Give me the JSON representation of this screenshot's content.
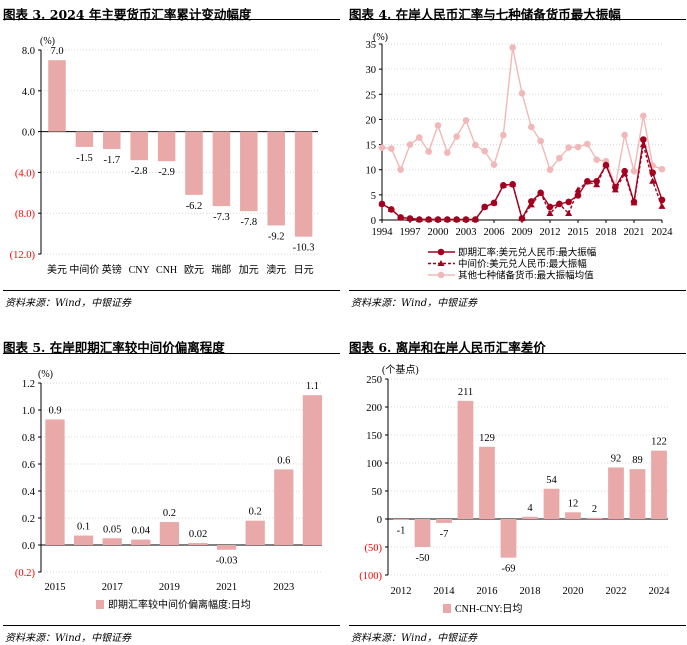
{
  "colors": {
    "bar": "#e8a9a8",
    "spot": "#a3001f",
    "central": "#a3001f",
    "others": "#f2b8b8",
    "negative_tick": "#ff0000",
    "grid": "#d9d9d9"
  },
  "source_text": "资料来源：Wind，中银证券",
  "chart_data": [
    {
      "type": "bar",
      "title": "图表 3. 2024 年主要货币汇率累计变动幅度",
      "unit": "(%)",
      "categories": [
        "美元",
        "中间价",
        "英镑",
        "CNY",
        "CNH",
        "欧元",
        "瑞郎",
        "加元",
        "澳元",
        "日元"
      ],
      "values": [
        7.0,
        -1.5,
        -1.7,
        -2.8,
        -2.9,
        -6.2,
        -7.3,
        -7.8,
        -9.2,
        -10.3
      ],
      "labels": [
        "7.0",
        "-1.5",
        "-1.7",
        "-2.8",
        "-2.9",
        "-6.2",
        "-7.3",
        "-7.8",
        "-9.2",
        "-10.3"
      ],
      "yticks": [
        8,
        4,
        0,
        -4,
        -8,
        -12
      ],
      "ytick_labels": [
        "8.0",
        "4.0",
        "0.0",
        "(4.0)",
        "(8.0)",
        "(12.0)"
      ],
      "ylim": [
        -12,
        8
      ]
    },
    {
      "type": "line",
      "title": "图表 4. 在岸人民币汇率与七种储备货币最大振幅",
      "unit": "(%)",
      "x": [
        1994,
        1995,
        1996,
        1997,
        1998,
        1999,
        2000,
        2001,
        2002,
        2003,
        2004,
        2005,
        2006,
        2007,
        2008,
        2009,
        2010,
        2011,
        2012,
        2013,
        2014,
        2015,
        2016,
        2017,
        2018,
        2019,
        2020,
        2021,
        2022,
        2023,
        2024
      ],
      "xtick_labels": [
        "1994",
        "1997",
        "2000",
        "2003",
        "2006",
        "2009",
        "2012",
        "2015",
        "2018",
        "2021",
        "2024"
      ],
      "yticks": [
        0,
        5,
        10,
        15,
        20,
        25,
        30,
        35
      ],
      "ytick_labels": [
        "0",
        "5",
        "10",
        "15",
        "20",
        "25",
        "30",
        "35"
      ],
      "ylim": [
        0,
        35
      ],
      "series": [
        {
          "name": "即期汇率:美元兑人民币:最大振幅",
          "style": "solid-circle",
          "values": [
            3.2,
            2.1,
            0.5,
            0.3,
            0.1,
            0.1,
            0.1,
            0.1,
            0.1,
            0.1,
            0.1,
            2.6,
            3.4,
            6.9,
            7.1,
            0.3,
            3.7,
            5.4,
            2.6,
            3.2,
            3.6,
            4.9,
            7.7,
            7.7,
            10.9,
            6.5,
            9.7,
            3.6,
            16.0,
            9.4,
            4.0
          ]
        },
        {
          "name": "中间价:美元兑人民币:最大振幅",
          "style": "dashed-triangle",
          "values": [
            3.2,
            2.1,
            0.5,
            0.3,
            0.1,
            0.1,
            0.1,
            0.1,
            0.1,
            0.1,
            0.1,
            2.6,
            3.4,
            6.9,
            7.1,
            0.3,
            3.0,
            5.4,
            1.3,
            3.2,
            1.3,
            6.0,
            7.6,
            7.0,
            11.0,
            6.0,
            9.2,
            3.4,
            15.0,
            7.7,
            2.7
          ]
        },
        {
          "name": "其他七种储备货币:最大振幅均值",
          "style": "light-circle",
          "values": [
            14.4,
            14.2,
            10.0,
            15.0,
            16.4,
            13.6,
            18.8,
            13.4,
            16.6,
            19.8,
            14.9,
            13.7,
            11.0,
            16.9,
            34.3,
            25.2,
            18.5,
            15.7,
            10.0,
            12.3,
            14.4,
            14.5,
            15.1,
            12.0,
            11.7,
            6.8,
            16.9,
            9.7,
            20.7,
            10.8,
            10.1
          ]
        }
      ]
    },
    {
      "type": "bar",
      "title": "图表 5. 在岸即期汇率较中间价偏离程度",
      "unit": "(%)",
      "categories": [
        "2015",
        "2016",
        "2017",
        "2018",
        "2019",
        "2020",
        "2021",
        "2022",
        "2023",
        "2024"
      ],
      "xtick_labels": [
        "2015",
        "",
        "2017",
        "",
        "2019",
        "",
        "2021",
        "",
        "2023",
        ""
      ],
      "values": [
        0.93,
        0.07,
        0.05,
        0.04,
        0.17,
        0.015,
        -0.035,
        0.18,
        0.56,
        1.11
      ],
      "labels": [
        "0.9",
        "0.1",
        "0.05",
        "0.04",
        "0.2",
        "0.02",
        "-0.03",
        "0.2",
        "0.6",
        "1.1"
      ],
      "yticks": [
        1.2,
        1.0,
        0.8,
        0.6,
        0.4,
        0.2,
        0.0,
        -0.2
      ],
      "ytick_labels": [
        "1.2",
        "1.0",
        "0.8",
        "0.6",
        "0.4",
        "0.2",
        "0.0",
        "(0.2)"
      ],
      "ylim": [
        -0.2,
        1.2
      ],
      "legend": "即期汇率较中间价偏离幅度:日均"
    },
    {
      "type": "bar",
      "title": "图表 6. 离岸和在岸人民币汇率差价",
      "unit": "(个基点)",
      "categories": [
        "2012",
        "2013",
        "2014",
        "2015",
        "2016",
        "2017",
        "2018",
        "2019",
        "2020",
        "2021",
        "2022",
        "2023",
        "2024"
      ],
      "xtick_labels": [
        "2012",
        "",
        "2014",
        "",
        "2016",
        "",
        "2018",
        "",
        "2020",
        "",
        "2022",
        "",
        "2024"
      ],
      "values": [
        -1,
        -50,
        -7,
        211,
        129,
        -69,
        4,
        54,
        12,
        2,
        92,
        89,
        122
      ],
      "labels": [
        "-1",
        "-50",
        "-7",
        "211",
        "129",
        "-69",
        "4",
        "54",
        "12",
        "2",
        "92",
        "89",
        "122"
      ],
      "yticks": [
        250,
        200,
        150,
        100,
        50,
        0,
        -50,
        -100
      ],
      "ytick_labels": [
        "250",
        "200",
        "150",
        "100",
        "50",
        "0",
        "(50)",
        "(100)"
      ],
      "ylim": [
        -100,
        250
      ],
      "legend": "CNH-CNY:日均"
    }
  ]
}
